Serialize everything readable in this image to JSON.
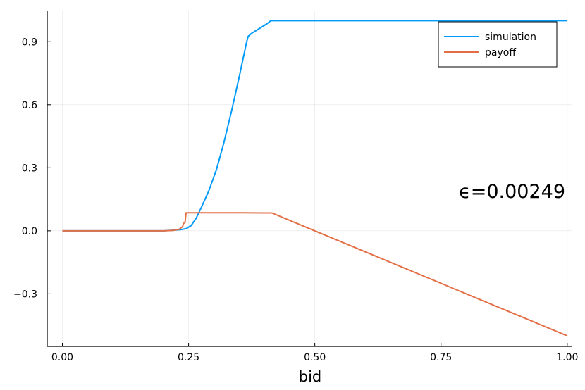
{
  "chart_data": {
    "type": "line",
    "title": "",
    "xlabel": "bid",
    "ylabel": "",
    "xlim": [
      -0.03,
      1.01
    ],
    "ylim": [
      -0.55,
      1.045
    ],
    "grid": true,
    "legend_position": "top-right",
    "x_ticks": [
      0.0,
      0.25,
      0.5,
      0.75,
      1.0
    ],
    "x_tick_labels": [
      "0.00",
      "0.25",
      "0.50",
      "0.75",
      "1.00"
    ],
    "y_ticks": [
      -0.3,
      0.0,
      0.3,
      0.6,
      0.9
    ],
    "y_tick_labels": [
      "−0.3",
      "0.0",
      "0.3",
      "0.6",
      "0.9"
    ],
    "annotation": "ϵ=0.00249",
    "series": [
      {
        "name": "simulation",
        "color": "#009af9",
        "x": [
          0.0,
          0.2,
          0.22,
          0.235,
          0.245,
          0.255,
          0.265,
          0.275,
          0.29,
          0.305,
          0.32,
          0.335,
          0.35,
          0.365,
          0.368,
          0.375,
          0.385,
          0.395,
          0.405,
          0.413,
          0.42,
          0.5,
          0.6,
          0.7,
          0.8,
          0.9,
          1.0
        ],
        "y": [
          0.0,
          0.0,
          0.003,
          0.006,
          0.01,
          0.025,
          0.06,
          0.11,
          0.19,
          0.29,
          0.42,
          0.57,
          0.73,
          0.9,
          0.925,
          0.94,
          0.955,
          0.97,
          0.985,
          1.0,
          1.0,
          1.0,
          1.0,
          1.0,
          1.0,
          1.0,
          1.0
        ]
      },
      {
        "name": "payoff",
        "color": "#e26f46",
        "x": [
          0.0,
          0.2,
          0.22,
          0.232,
          0.238,
          0.24,
          0.243,
          0.245,
          0.25,
          0.3,
          0.35,
          0.4,
          0.415,
          0.5,
          0.6,
          0.7,
          0.8,
          0.9,
          1.0
        ],
        "y": [
          0.0,
          0.0,
          0.002,
          0.008,
          0.02,
          0.035,
          0.04,
          0.086,
          0.086,
          0.086,
          0.086,
          0.085,
          0.085,
          0.0,
          -0.1,
          -0.2,
          -0.3,
          -0.4,
          -0.5
        ]
      }
    ]
  }
}
